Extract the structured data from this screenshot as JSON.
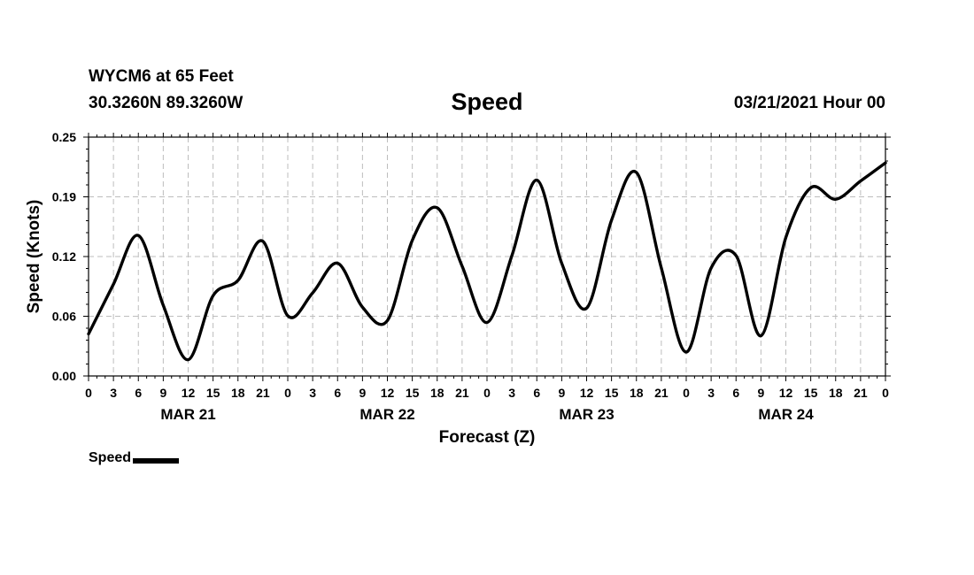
{
  "header": {
    "station": "WYCM6 at 65 Feet",
    "coords": "30.3260N 89.3260W",
    "datetime": "03/21/2021 Hour 00"
  },
  "chart_data": {
    "type": "line",
    "title": "Speed",
    "xlabel": "Forecast (Z)",
    "ylabel": "Speed (Knots)",
    "ylim": [
      0,
      0.25
    ],
    "xlim": [
      0,
      96
    ],
    "yticks": [
      "0.00",
      "0.06",
      "0.12",
      "0.19",
      "0.25"
    ],
    "xticks": [
      "0",
      "3",
      "6",
      "9",
      "12",
      "15",
      "18",
      "21",
      "0",
      "3",
      "6",
      "9",
      "12",
      "15",
      "18",
      "21",
      "0",
      "3",
      "6",
      "9",
      "12",
      "15",
      "18",
      "21",
      "0",
      "3",
      "6",
      "9",
      "12",
      "15",
      "18",
      "21",
      "0"
    ],
    "days": [
      {
        "label": "MAR 21",
        "center_hour": 12
      },
      {
        "label": "MAR 22",
        "center_hour": 36
      },
      {
        "label": "MAR 23",
        "center_hour": 60
      },
      {
        "label": "MAR 24",
        "center_hour": 84
      }
    ],
    "grid": true,
    "legend": {
      "position": "bottom-left"
    },
    "series": [
      {
        "name": "Speed",
        "color": "#000000",
        "x": [
          0,
          3,
          6,
          9,
          12,
          15,
          18,
          21,
          24,
          27,
          30,
          33,
          36,
          39,
          42,
          45,
          48,
          51,
          54,
          57,
          60,
          63,
          66,
          69,
          72,
          75,
          78,
          81,
          84,
          87,
          90,
          93,
          96
        ],
        "y": [
          0.044,
          0.096,
          0.147,
          0.074,
          0.017,
          0.084,
          0.1,
          0.141,
          0.063,
          0.087,
          0.118,
          0.072,
          0.058,
          0.142,
          0.176,
          0.115,
          0.056,
          0.126,
          0.205,
          0.118,
          0.071,
          0.163,
          0.213,
          0.113,
          0.025,
          0.113,
          0.126,
          0.042,
          0.145,
          0.197,
          0.185,
          0.204,
          0.223
        ]
      }
    ]
  }
}
